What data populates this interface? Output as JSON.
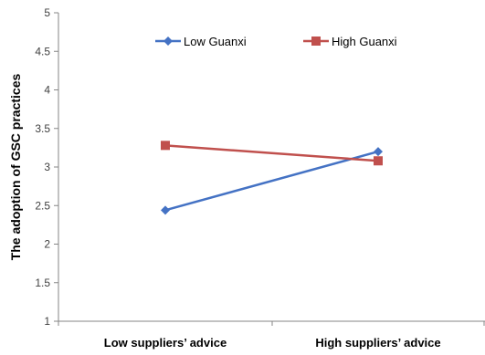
{
  "chart_data": {
    "type": "line",
    "title": "",
    "xlabel": "",
    "ylabel": "The adoption of GSC practices",
    "categories": [
      "Low suppliers’ advice",
      "High suppliers’ advice"
    ],
    "yticks": [
      "1",
      "1.5",
      "2",
      "2.5",
      "3",
      "3.5",
      "4",
      "4.5",
      "5"
    ],
    "ylim": [
      1,
      5
    ],
    "grid": false,
    "legend_position": "top",
    "series": [
      {
        "name": "Low Guanxi",
        "values": [
          2.44,
          3.2
        ],
        "color": "#4472C4",
        "marker": "diamond"
      },
      {
        "name": "High Guanxi",
        "values": [
          3.28,
          3.08
        ],
        "color": "#C0504D",
        "marker": "square"
      }
    ]
  }
}
